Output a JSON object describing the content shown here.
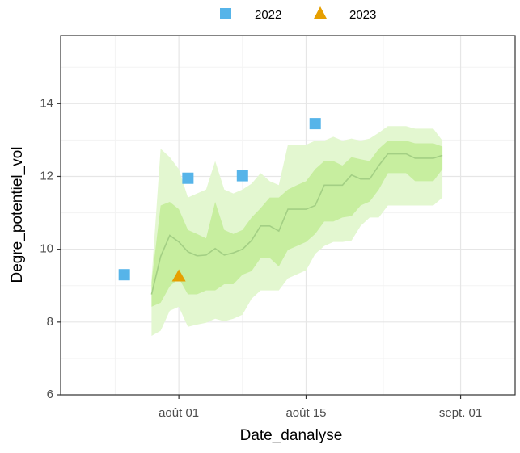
{
  "chart_data": {
    "type": "line",
    "x_label": "Date_danalyse",
    "y_label": "Degre_potentiel_vol",
    "xlim": [
      "07-19",
      "09-07"
    ],
    "xticks": [
      {
        "value": "08-01",
        "label": "août 01"
      },
      {
        "value": "08-15",
        "label": "août 15"
      },
      {
        "value": "09-01",
        "label": "sept. 01"
      }
    ],
    "ylim": [
      6,
      15.87
    ],
    "yticks": [
      6,
      8,
      10,
      12,
      14
    ],
    "grid": true,
    "legend": "top",
    "x": [
      "07-29",
      "07-30",
      "07-31",
      "08-01",
      "08-02",
      "08-03",
      "08-04",
      "08-05",
      "08-06",
      "08-07",
      "08-08",
      "08-09",
      "08-10",
      "08-11",
      "08-12",
      "08-13",
      "08-14",
      "08-15",
      "08-16",
      "08-17",
      "08-18",
      "08-19",
      "08-20",
      "08-21",
      "08-22",
      "08-23",
      "08-24",
      "08-25",
      "08-26",
      "08-27",
      "08-28",
      "08-29",
      "08-30"
    ],
    "line_color": "#a3cf84",
    "values": [
      8.76,
      9.8,
      10.38,
      10.2,
      9.93,
      9.82,
      9.84,
      10.02,
      9.84,
      9.9,
      10.0,
      10.24,
      10.64,
      10.64,
      10.5,
      11.1,
      11.1,
      11.1,
      11.2,
      11.76,
      11.76,
      11.76,
      12.04,
      11.93,
      11.93,
      12.3,
      12.62,
      12.62,
      12.62,
      12.5,
      12.5,
      12.5,
      12.58
    ],
    "bands": [
      {
        "color": "#e3f7d0",
        "low": [
          7.62,
          7.76,
          8.31,
          8.42,
          7.87,
          7.93,
          7.98,
          8.09,
          8.02,
          8.09,
          8.2,
          8.64,
          8.87,
          8.87,
          8.87,
          9.2,
          9.31,
          9.42,
          9.87,
          10.09,
          10.2,
          10.2,
          10.24,
          10.64,
          10.87,
          10.87,
          11.2,
          11.2,
          11.2,
          11.2,
          11.2,
          11.2,
          11.42
        ],
        "high": [
          9.2,
          12.76,
          12.53,
          12.2,
          11.42,
          11.53,
          11.64,
          12.42,
          11.64,
          11.53,
          11.64,
          11.8,
          12.09,
          11.87,
          11.76,
          12.87,
          12.87,
          12.87,
          12.98,
          12.98,
          13.09,
          12.98,
          13.04,
          12.98,
          13.04,
          13.2,
          13.38,
          13.38,
          13.38,
          13.31,
          13.31,
          13.31,
          12.98
        ]
      },
      {
        "color": "#c7ee9f",
        "low": [
          8.42,
          8.53,
          8.98,
          9.2,
          8.76,
          8.76,
          8.87,
          8.87,
          9.04,
          9.04,
          9.3,
          9.4,
          9.76,
          9.76,
          9.53,
          9.98,
          10.09,
          10.2,
          10.42,
          10.76,
          10.76,
          10.87,
          10.91,
          11.2,
          11.31,
          11.64,
          12.09,
          12.09,
          12.09,
          11.87,
          11.87,
          11.87,
          12.2
        ],
        "high": [
          9.1,
          11.2,
          11.3,
          11.1,
          10.53,
          10.42,
          10.3,
          11.3,
          10.53,
          10.42,
          10.53,
          10.87,
          11.13,
          11.42,
          11.42,
          11.64,
          11.76,
          11.87,
          12.2,
          12.42,
          12.42,
          12.3,
          12.53,
          12.47,
          12.42,
          12.76,
          12.98,
          12.98,
          12.98,
          12.91,
          12.91,
          12.91,
          12.82
        ]
      }
    ],
    "series": [
      {
        "name": "2022",
        "color": "#56B4E9",
        "marker": "square",
        "x": [
          "07-26",
          "08-02",
          "08-08",
          "08-16"
        ],
        "values": [
          9.3,
          11.95,
          12.02,
          13.45
        ]
      },
      {
        "name": "2023",
        "color": "#E69F00",
        "marker": "triangle",
        "x": [
          "08-01"
        ],
        "values": [
          9.25
        ]
      }
    ]
  }
}
